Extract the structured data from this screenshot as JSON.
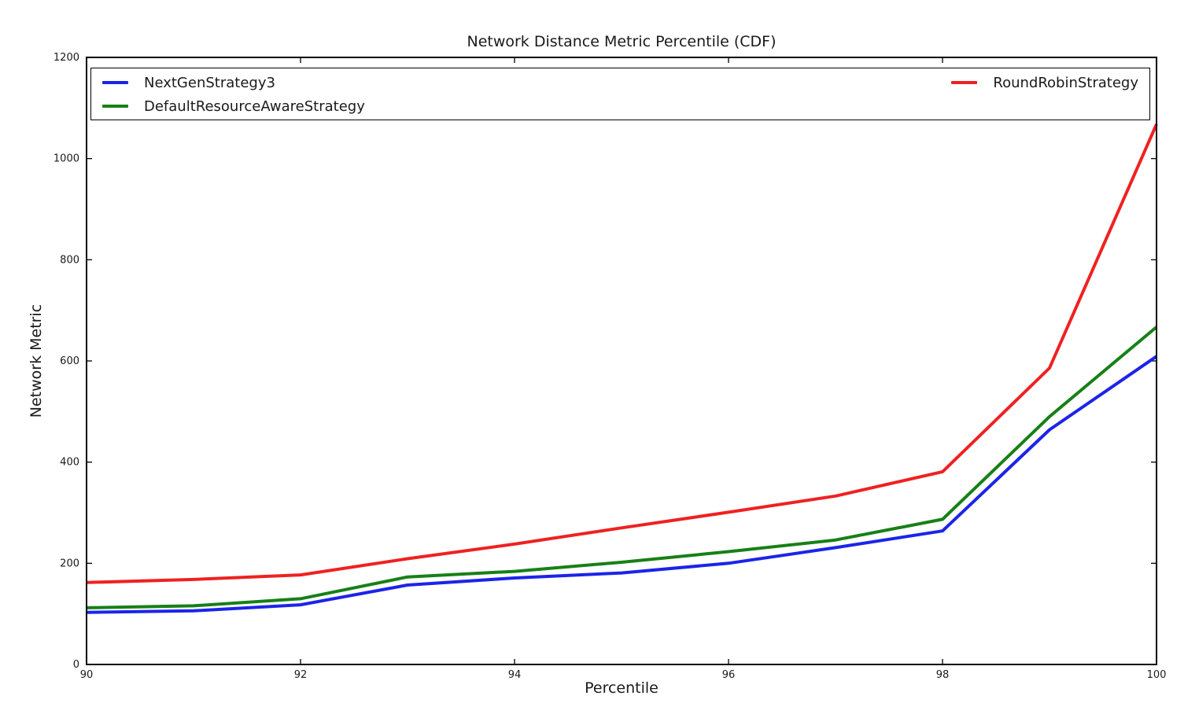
{
  "chart_data": {
    "type": "line",
    "title": "Network Distance Metric Percentile (CDF)",
    "xlabel": "Percentile",
    "ylabel": "Network Metric",
    "xlim": [
      90,
      100
    ],
    "ylim": [
      0,
      1200
    ],
    "xticks": [
      90,
      92,
      94,
      96,
      98,
      100
    ],
    "yticks": [
      0,
      200,
      400,
      600,
      800,
      1000,
      1200
    ],
    "grid": false,
    "legend_position": "top inside, full plot width, two columns",
    "x": [
      90,
      91,
      92,
      93,
      94,
      95,
      96,
      97,
      98,
      99,
      100
    ],
    "series": [
      {
        "name": "NextGenStrategy3",
        "color": "#1c24e8",
        "values": [
          103,
          106,
          118,
          157,
          171,
          181,
          200,
          231,
          264,
          464,
          609
        ]
      },
      {
        "name": "DefaultResourceAwareStrategy",
        "color": "#178017",
        "values": [
          112,
          116,
          130,
          173,
          184,
          202,
          223,
          246,
          287,
          490,
          667
        ]
      },
      {
        "name": "RoundRobinStrategy",
        "color": "#ef2121",
        "values": [
          162,
          168,
          177,
          209,
          238,
          270,
          301,
          333,
          381,
          586,
          1068
        ]
      }
    ],
    "legend": {
      "left_column": [
        "NextGenStrategy3",
        "DefaultResourceAwareStrategy"
      ],
      "right_column": [
        "RoundRobinStrategy"
      ]
    },
    "axis_color": "#000000",
    "background_color": "#ffffff"
  }
}
